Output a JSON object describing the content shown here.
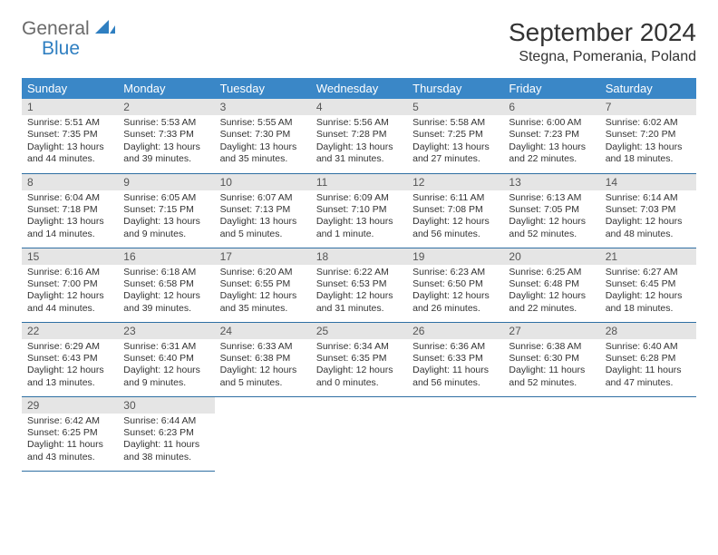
{
  "brand": {
    "line1": "General",
    "line2": "Blue"
  },
  "title": "September 2024",
  "location": "Stegna, Pomerania, Poland",
  "colors": {
    "header_bg": "#3a87c7",
    "header_text": "#ffffff",
    "daynum_bg": "#e5e5e5",
    "row_border": "#2f6fa3",
    "logo_general": "#6a6a6a",
    "logo_blue": "#2f7fc1"
  },
  "weekdays": [
    "Sunday",
    "Monday",
    "Tuesday",
    "Wednesday",
    "Thursday",
    "Friday",
    "Saturday"
  ],
  "weeks": [
    [
      {
        "n": 1,
        "sr": "5:51 AM",
        "ss": "7:35 PM",
        "dl": "13 hours and 44 minutes."
      },
      {
        "n": 2,
        "sr": "5:53 AM",
        "ss": "7:33 PM",
        "dl": "13 hours and 39 minutes."
      },
      {
        "n": 3,
        "sr": "5:55 AM",
        "ss": "7:30 PM",
        "dl": "13 hours and 35 minutes."
      },
      {
        "n": 4,
        "sr": "5:56 AM",
        "ss": "7:28 PM",
        "dl": "13 hours and 31 minutes."
      },
      {
        "n": 5,
        "sr": "5:58 AM",
        "ss": "7:25 PM",
        "dl": "13 hours and 27 minutes."
      },
      {
        "n": 6,
        "sr": "6:00 AM",
        "ss": "7:23 PM",
        "dl": "13 hours and 22 minutes."
      },
      {
        "n": 7,
        "sr": "6:02 AM",
        "ss": "7:20 PM",
        "dl": "13 hours and 18 minutes."
      }
    ],
    [
      {
        "n": 8,
        "sr": "6:04 AM",
        "ss": "7:18 PM",
        "dl": "13 hours and 14 minutes."
      },
      {
        "n": 9,
        "sr": "6:05 AM",
        "ss": "7:15 PM",
        "dl": "13 hours and 9 minutes."
      },
      {
        "n": 10,
        "sr": "6:07 AM",
        "ss": "7:13 PM",
        "dl": "13 hours and 5 minutes."
      },
      {
        "n": 11,
        "sr": "6:09 AM",
        "ss": "7:10 PM",
        "dl": "13 hours and 1 minute."
      },
      {
        "n": 12,
        "sr": "6:11 AM",
        "ss": "7:08 PM",
        "dl": "12 hours and 56 minutes."
      },
      {
        "n": 13,
        "sr": "6:13 AM",
        "ss": "7:05 PM",
        "dl": "12 hours and 52 minutes."
      },
      {
        "n": 14,
        "sr": "6:14 AM",
        "ss": "7:03 PM",
        "dl": "12 hours and 48 minutes."
      }
    ],
    [
      {
        "n": 15,
        "sr": "6:16 AM",
        "ss": "7:00 PM",
        "dl": "12 hours and 44 minutes."
      },
      {
        "n": 16,
        "sr": "6:18 AM",
        "ss": "6:58 PM",
        "dl": "12 hours and 39 minutes."
      },
      {
        "n": 17,
        "sr": "6:20 AM",
        "ss": "6:55 PM",
        "dl": "12 hours and 35 minutes."
      },
      {
        "n": 18,
        "sr": "6:22 AM",
        "ss": "6:53 PM",
        "dl": "12 hours and 31 minutes."
      },
      {
        "n": 19,
        "sr": "6:23 AM",
        "ss": "6:50 PM",
        "dl": "12 hours and 26 minutes."
      },
      {
        "n": 20,
        "sr": "6:25 AM",
        "ss": "6:48 PM",
        "dl": "12 hours and 22 minutes."
      },
      {
        "n": 21,
        "sr": "6:27 AM",
        "ss": "6:45 PM",
        "dl": "12 hours and 18 minutes."
      }
    ],
    [
      {
        "n": 22,
        "sr": "6:29 AM",
        "ss": "6:43 PM",
        "dl": "12 hours and 13 minutes."
      },
      {
        "n": 23,
        "sr": "6:31 AM",
        "ss": "6:40 PM",
        "dl": "12 hours and 9 minutes."
      },
      {
        "n": 24,
        "sr": "6:33 AM",
        "ss": "6:38 PM",
        "dl": "12 hours and 5 minutes."
      },
      {
        "n": 25,
        "sr": "6:34 AM",
        "ss": "6:35 PM",
        "dl": "12 hours and 0 minutes."
      },
      {
        "n": 26,
        "sr": "6:36 AM",
        "ss": "6:33 PM",
        "dl": "11 hours and 56 minutes."
      },
      {
        "n": 27,
        "sr": "6:38 AM",
        "ss": "6:30 PM",
        "dl": "11 hours and 52 minutes."
      },
      {
        "n": 28,
        "sr": "6:40 AM",
        "ss": "6:28 PM",
        "dl": "11 hours and 47 minutes."
      }
    ],
    [
      {
        "n": 29,
        "sr": "6:42 AM",
        "ss": "6:25 PM",
        "dl": "11 hours and 43 minutes."
      },
      {
        "n": 30,
        "sr": "6:44 AM",
        "ss": "6:23 PM",
        "dl": "11 hours and 38 minutes."
      },
      null,
      null,
      null,
      null,
      null
    ]
  ],
  "labels": {
    "sunrise": "Sunrise:",
    "sunset": "Sunset:",
    "daylight": "Daylight:"
  }
}
